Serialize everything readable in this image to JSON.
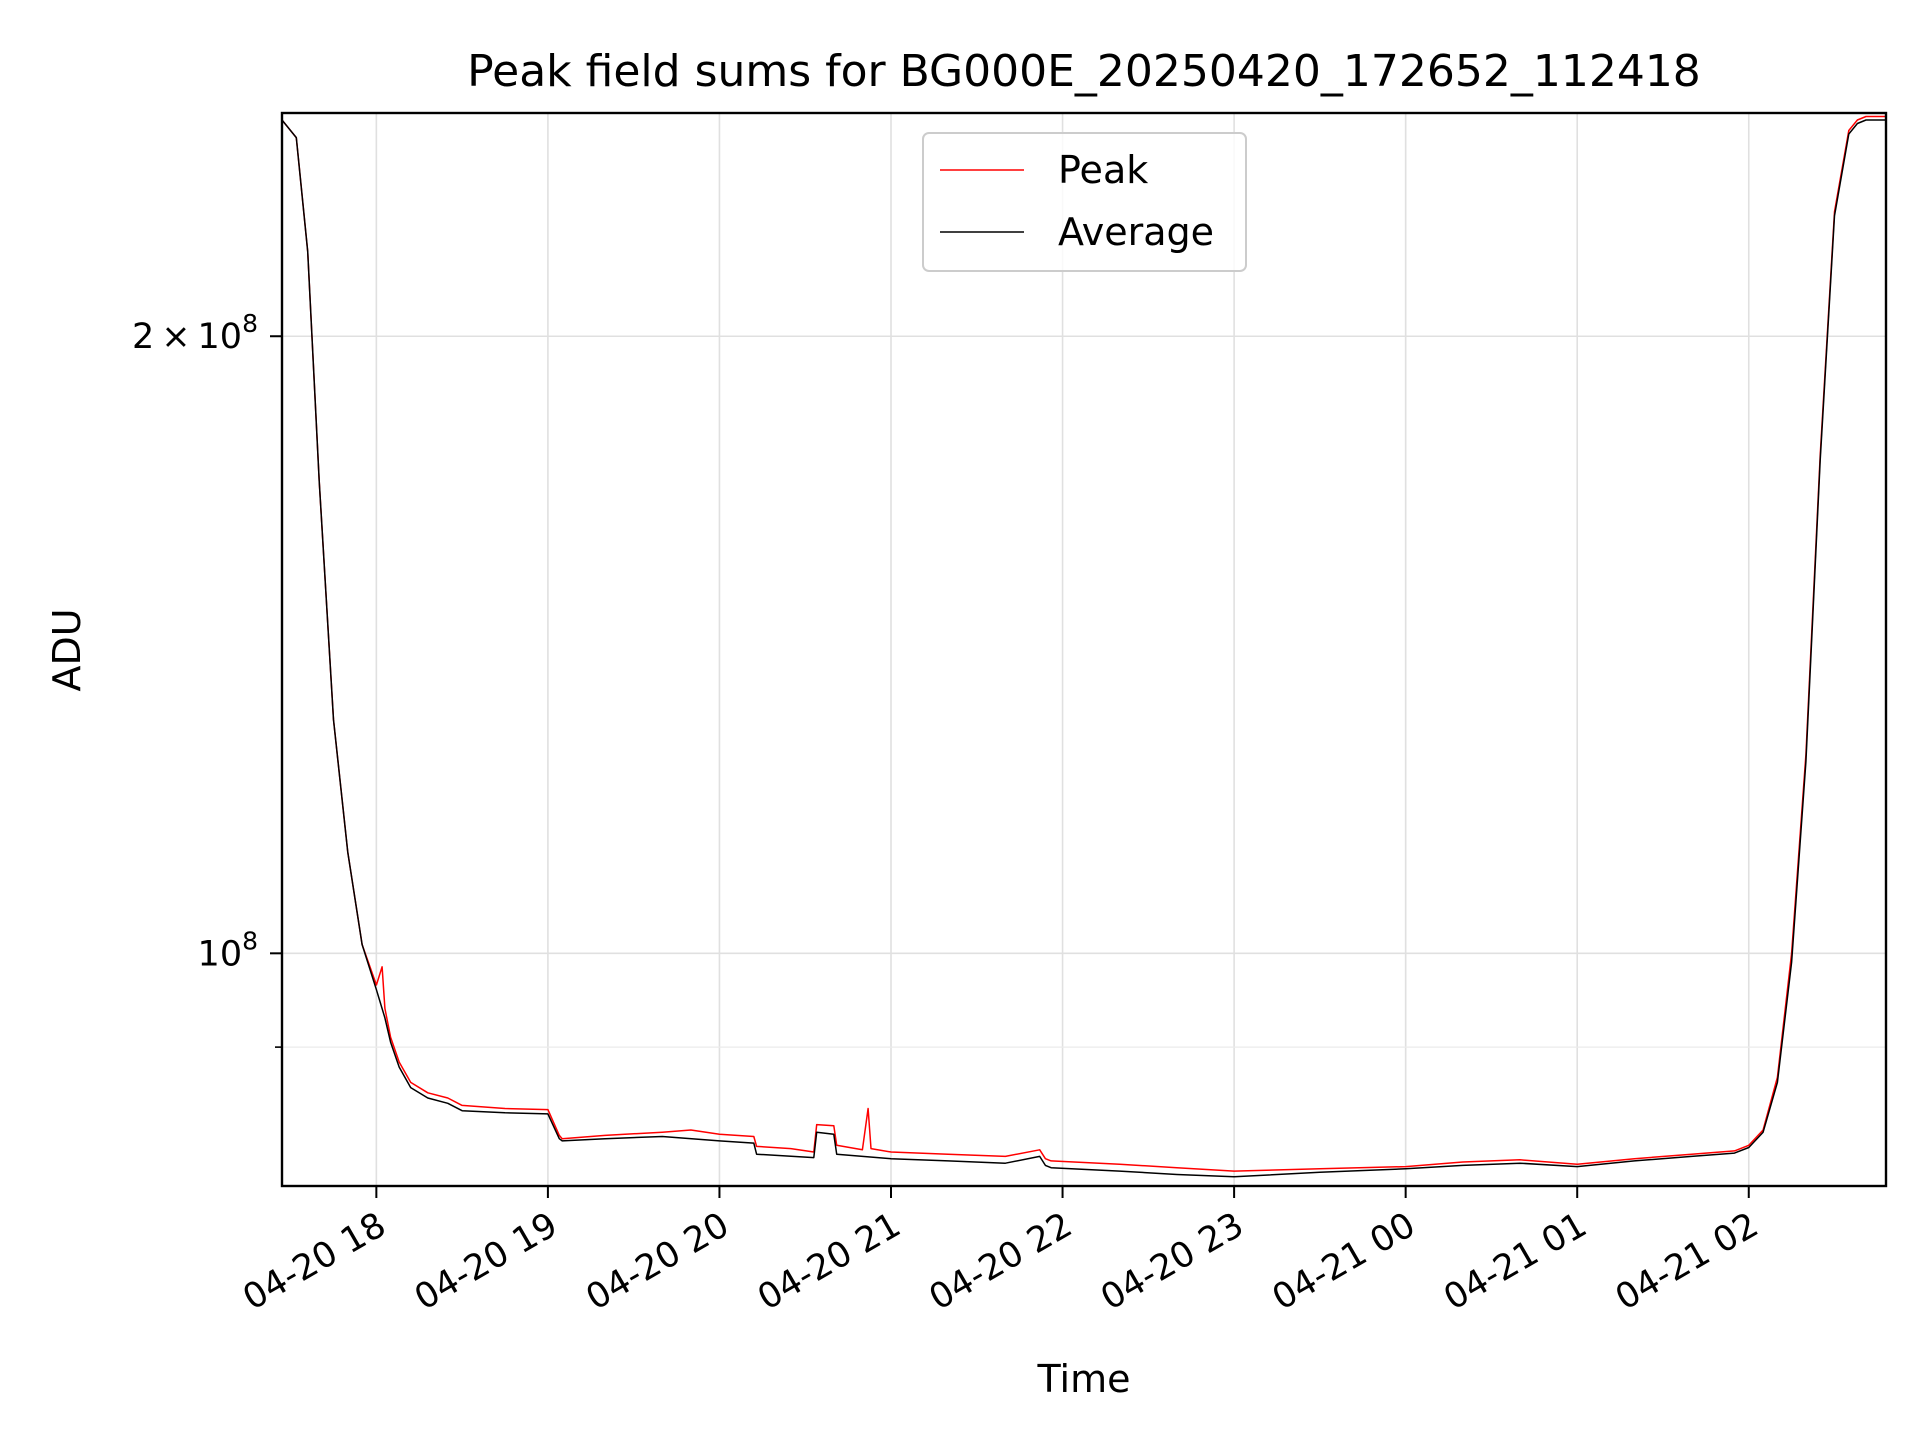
{
  "chart_data": {
    "type": "line",
    "title": "Peak field sums for BG000E_20250420_172652_112418",
    "xlabel": "Time",
    "ylabel": "ADU",
    "y_scale": "log",
    "ylim": [
      77000000,
      257000000
    ],
    "xlim": [
      "2025-04-20 17:27",
      "2025-04-21 02:48"
    ],
    "x_ticks": [
      {
        "value": "2025-04-20 18:00",
        "label": "04-20 18"
      },
      {
        "value": "2025-04-20 19:00",
        "label": "04-20 19"
      },
      {
        "value": "2025-04-20 20:00",
        "label": "04-20 20"
      },
      {
        "value": "2025-04-20 21:00",
        "label": "04-20 21"
      },
      {
        "value": "2025-04-20 22:00",
        "label": "04-20 22"
      },
      {
        "value": "2025-04-20 23:00",
        "label": "04-20 23"
      },
      {
        "value": "2025-04-21 00:00",
        "label": "04-21 00"
      },
      {
        "value": "2025-04-21 01:00",
        "label": "04-21 01"
      },
      {
        "value": "2025-04-21 02:00",
        "label": "04-21 02"
      }
    ],
    "y_ticks": [
      {
        "value": 100000000,
        "base": "10",
        "exp": "8",
        "coef": ""
      },
      {
        "value": 200000000,
        "base": "10",
        "exp": "8",
        "coef": "2"
      }
    ],
    "y_minor_ticks": [
      90000000
    ],
    "grid": true,
    "legend": "upper center",
    "series": [
      {
        "name": "Peak",
        "color": "#ff0000",
        "x": [
          "2025-04-20 17:27",
          "2025-04-20 17:32",
          "2025-04-20 17:36",
          "2025-04-20 17:40",
          "2025-04-20 17:45",
          "2025-04-20 17:50",
          "2025-04-20 17:55",
          "2025-04-20 18:00",
          "2025-04-20 18:02",
          "2025-04-20 18:03",
          "2025-04-20 18:05",
          "2025-04-20 18:08",
          "2025-04-20 18:12",
          "2025-04-20 18:18",
          "2025-04-20 18:25",
          "2025-04-20 18:30",
          "2025-04-20 18:45",
          "2025-04-20 19:00",
          "2025-04-20 19:04",
          "2025-04-20 19:05",
          "2025-04-20 19:20",
          "2025-04-20 19:40",
          "2025-04-20 19:50",
          "2025-04-20 20:00",
          "2025-04-20 20:12",
          "2025-04-20 20:13",
          "2025-04-20 20:25",
          "2025-04-20 20:33",
          "2025-04-20 20:34",
          "2025-04-20 20:40",
          "2025-04-20 20:41",
          "2025-04-20 20:50",
          "2025-04-20 20:52",
          "2025-04-20 20:53",
          "2025-04-20 21:00",
          "2025-04-20 21:20",
          "2025-04-20 21:40",
          "2025-04-20 21:52",
          "2025-04-20 21:54",
          "2025-04-20 21:56",
          "2025-04-20 22:20",
          "2025-04-20 22:40",
          "2025-04-20 23:00",
          "2025-04-20 23:30",
          "2025-04-21 00:00",
          "2025-04-21 00:20",
          "2025-04-21 00:40",
          "2025-04-21 01:00",
          "2025-04-21 01:20",
          "2025-04-21 01:40",
          "2025-04-21 01:55",
          "2025-04-21 02:00",
          "2025-04-21 02:05",
          "2025-04-21 02:10",
          "2025-04-21 02:15",
          "2025-04-21 02:20",
          "2025-04-21 02:25",
          "2025-04-21 02:30",
          "2025-04-21 02:35",
          "2025-04-21 02:38",
          "2025-04-21 02:41",
          "2025-04-21 02:48"
        ],
        "y": [
          255000000,
          250000000,
          220000000,
          170000000,
          130000000,
          112000000,
          101000000,
          96500000,
          98500000,
          94000000,
          91000000,
          88500000,
          86500000,
          85500000,
          85000000,
          84300000,
          84000000,
          83900000,
          81500000,
          81200000,
          81500000,
          81800000,
          82000000,
          81600000,
          81400000,
          80500000,
          80300000,
          80000000,
          82500000,
          82400000,
          80600000,
          80200000,
          84000000,
          80300000,
          80000000,
          79800000,
          79600000,
          80200000,
          79400000,
          79200000,
          78900000,
          78600000,
          78300000,
          78500000,
          78700000,
          79100000,
          79300000,
          78900000,
          79400000,
          79800000,
          80100000,
          80600000,
          82000000,
          87000000,
          100000000,
          125000000,
          175000000,
          230000000,
          252000000,
          255000000,
          256000000,
          256000000
        ]
      },
      {
        "name": "Average",
        "color": "#000000",
        "x": [
          "2025-04-20 17:27",
          "2025-04-20 17:32",
          "2025-04-20 17:36",
          "2025-04-20 17:40",
          "2025-04-20 17:45",
          "2025-04-20 17:50",
          "2025-04-20 17:55",
          "2025-04-20 18:00",
          "2025-04-20 18:03",
          "2025-04-20 18:05",
          "2025-04-20 18:08",
          "2025-04-20 18:12",
          "2025-04-20 18:18",
          "2025-04-20 18:25",
          "2025-04-20 18:30",
          "2025-04-20 18:45",
          "2025-04-20 19:00",
          "2025-04-20 19:04",
          "2025-04-20 19:05",
          "2025-04-20 19:20",
          "2025-04-20 19:40",
          "2025-04-20 20:00",
          "2025-04-20 20:12",
          "2025-04-20 20:13",
          "2025-04-20 20:33",
          "2025-04-20 20:34",
          "2025-04-20 20:40",
          "2025-04-20 20:41",
          "2025-04-20 21:00",
          "2025-04-20 21:20",
          "2025-04-20 21:40",
          "2025-04-20 21:52",
          "2025-04-20 21:54",
          "2025-04-20 21:56",
          "2025-04-20 22:20",
          "2025-04-20 22:40",
          "2025-04-20 23:00",
          "2025-04-20 23:30",
          "2025-04-21 00:00",
          "2025-04-21 00:20",
          "2025-04-21 00:40",
          "2025-04-21 01:00",
          "2025-04-21 01:20",
          "2025-04-21 01:40",
          "2025-04-21 01:55",
          "2025-04-21 02:00",
          "2025-04-21 02:05",
          "2025-04-21 02:10",
          "2025-04-21 02:15",
          "2025-04-21 02:20",
          "2025-04-21 02:25",
          "2025-04-21 02:30",
          "2025-04-21 02:35",
          "2025-04-21 02:38",
          "2025-04-21 02:41",
          "2025-04-21 02:48"
        ],
        "y": [
          255000000,
          250000000,
          220000000,
          170000000,
          130000000,
          112000000,
          101000000,
          96000000,
          93000000,
          90500000,
          88000000,
          86000000,
          85000000,
          84500000,
          83800000,
          83600000,
          83500000,
          81200000,
          81000000,
          81200000,
          81400000,
          81000000,
          80800000,
          79800000,
          79500000,
          81800000,
          81600000,
          79800000,
          79400000,
          79200000,
          79000000,
          79600000,
          78800000,
          78600000,
          78300000,
          78000000,
          77800000,
          78200000,
          78500000,
          78800000,
          79000000,
          78700000,
          79200000,
          79600000,
          79900000,
          80400000,
          81800000,
          86500000,
          99000000,
          124000000,
          174000000,
          229000000,
          251000000,
          254000000,
          255000000,
          255000000
        ]
      }
    ]
  }
}
